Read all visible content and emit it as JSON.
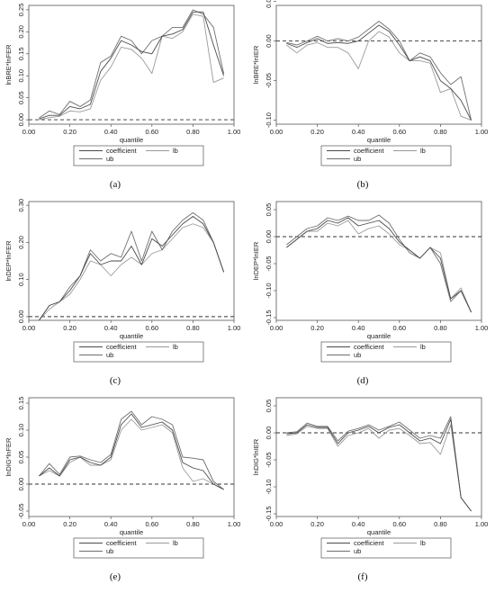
{
  "chart_data": [
    {
      "type": "line",
      "caption": "(a)",
      "xlabel": "quantile",
      "ylabel": "lnBRE*lnFER",
      "xlim": [
        0,
        1
      ],
      "ylim": [
        -0.01,
        0.26
      ],
      "xticks": [
        "0.00",
        "0.20",
        "0.40",
        "0.60",
        "0.80",
        "1.00"
      ],
      "yticks": [
        "0.00",
        "0.05",
        "0.10",
        "0.15",
        "0.20",
        "0.25"
      ],
      "reference_line": 0,
      "legend": [
        "coefficient",
        "lb",
        "ub"
      ],
      "x": [
        0.05,
        0.1,
        0.15,
        0.2,
        0.25,
        0.3,
        0.35,
        0.4,
        0.45,
        0.5,
        0.55,
        0.6,
        0.65,
        0.7,
        0.75,
        0.8,
        0.85,
        0.9,
        0.95
      ],
      "series": [
        {
          "name": "coefficient",
          "values": [
            0.002,
            0.01,
            0.01,
            0.03,
            0.025,
            0.035,
            0.11,
            0.14,
            0.18,
            0.17,
            0.155,
            0.15,
            0.19,
            0.195,
            0.205,
            0.245,
            0.245,
            0.17,
            0.1
          ]
        },
        {
          "name": "lb",
          "values": [
            0.0,
            0.005,
            0.008,
            0.02,
            0.018,
            0.025,
            0.09,
            0.12,
            0.165,
            0.16,
            0.14,
            0.105,
            0.19,
            0.185,
            0.2,
            0.24,
            0.235,
            0.085,
            0.095
          ]
        },
        {
          "name": "ub",
          "values": [
            0.004,
            0.02,
            0.012,
            0.042,
            0.03,
            0.045,
            0.13,
            0.145,
            0.19,
            0.18,
            0.15,
            0.18,
            0.19,
            0.21,
            0.21,
            0.25,
            0.24,
            0.21,
            0.105
          ]
        }
      ]
    },
    {
      "type": "line",
      "caption": "(b)",
      "xlabel": "quantile",
      "ylabel": "lnBRE*lnIER",
      "xlim": [
        0,
        1
      ],
      "ylim": [
        -0.105,
        0.045
      ],
      "xticks": [
        "0.00",
        "0.20",
        "0.40",
        "0.60",
        "0.80",
        "1.00"
      ],
      "yticks": [
        "-0.10",
        "-0.05",
        "0.00",
        "0.05"
      ],
      "reference_line": 0,
      "legend": [
        "coefficient",
        "lb",
        "ub"
      ],
      "x": [
        0.05,
        0.1,
        0.15,
        0.2,
        0.25,
        0.3,
        0.35,
        0.4,
        0.45,
        0.5,
        0.55,
        0.6,
        0.65,
        0.7,
        0.75,
        0.8,
        0.85,
        0.9,
        0.95
      ],
      "series": [
        {
          "name": "coefficient",
          "values": [
            -0.003,
            -0.008,
            -0.002,
            0.003,
            -0.003,
            -0.002,
            -0.003,
            0.0,
            0.01,
            0.02,
            0.012,
            -0.005,
            -0.025,
            -0.02,
            -0.025,
            -0.05,
            -0.06,
            -0.075,
            -0.1
          ]
        },
        {
          "name": "lb",
          "values": [
            -0.005,
            -0.015,
            -0.005,
            -0.002,
            -0.008,
            -0.008,
            -0.015,
            -0.035,
            0.0,
            0.012,
            0.005,
            -0.015,
            -0.025,
            -0.025,
            -0.028,
            -0.065,
            -0.06,
            -0.095,
            -0.1
          ]
        },
        {
          "name": "ub",
          "values": [
            -0.002,
            -0.005,
            0.0,
            0.006,
            0.0,
            0.003,
            0.0,
            0.005,
            0.015,
            0.025,
            0.015,
            0.0,
            -0.025,
            -0.015,
            -0.02,
            -0.04,
            -0.055,
            -0.045,
            -0.1
          ]
        }
      ]
    },
    {
      "type": "line",
      "caption": "(c)",
      "xlabel": "quantile",
      "ylabel": "lnDEP*lnFER",
      "xlim": [
        0,
        1
      ],
      "ylim": [
        -0.01,
        0.31
      ],
      "xticks": [
        "0.00",
        "0.20",
        "0.40",
        "0.60",
        "0.80",
        "1.00"
      ],
      "yticks": [
        "0.00",
        "0.10",
        "0.20",
        "0.30"
      ],
      "reference_line": 0,
      "legend": [
        "coefficient",
        "lb",
        "ub"
      ],
      "x": [
        0.05,
        0.1,
        0.15,
        0.2,
        0.25,
        0.3,
        0.35,
        0.4,
        0.45,
        0.5,
        0.55,
        0.6,
        0.65,
        0.7,
        0.75,
        0.8,
        0.85,
        0.9,
        0.95
      ],
      "series": [
        {
          "name": "coefficient",
          "values": [
            -0.01,
            0.03,
            0.04,
            0.07,
            0.11,
            0.17,
            0.14,
            0.15,
            0.15,
            0.19,
            0.14,
            0.21,
            0.19,
            0.22,
            0.25,
            0.27,
            0.25,
            0.2,
            0.12
          ]
        },
        {
          "name": "lb",
          "values": [
            -0.01,
            0.02,
            0.04,
            0.06,
            0.1,
            0.15,
            0.14,
            0.11,
            0.14,
            0.16,
            0.14,
            0.17,
            0.18,
            0.21,
            0.24,
            0.25,
            0.24,
            0.2,
            0.12
          ]
        },
        {
          "name": "ub",
          "values": [
            -0.01,
            0.03,
            0.04,
            0.08,
            0.11,
            0.18,
            0.15,
            0.17,
            0.16,
            0.23,
            0.15,
            0.23,
            0.18,
            0.23,
            0.26,
            0.28,
            0.26,
            0.2,
            0.12
          ]
        }
      ]
    },
    {
      "type": "line",
      "caption": "(d)",
      "xlabel": "quantile",
      "ylabel": "lnDEP*lnIER",
      "xlim": [
        0,
        1
      ],
      "ylim": [
        -0.155,
        0.065
      ],
      "xticks": [
        "0.00",
        "0.20",
        "0.40",
        "0.60",
        "0.80",
        "1.00"
      ],
      "yticks": [
        "-0.15",
        "-0.10",
        "-0.05",
        "0.00",
        "0.05"
      ],
      "reference_line": 0,
      "legend": [
        "coefficient",
        "lb",
        "ub"
      ],
      "x": [
        0.05,
        0.1,
        0.15,
        0.2,
        0.25,
        0.3,
        0.35,
        0.4,
        0.45,
        0.5,
        0.55,
        0.6,
        0.65,
        0.7,
        0.75,
        0.8,
        0.85,
        0.9,
        0.95
      ],
      "series": [
        {
          "name": "coefficient",
          "values": [
            -0.02,
            -0.005,
            0.01,
            0.015,
            0.03,
            0.025,
            0.035,
            0.02,
            0.025,
            0.03,
            0.015,
            -0.01,
            -0.025,
            -0.04,
            -0.02,
            -0.04,
            -0.115,
            -0.1,
            -0.14
          ]
        },
        {
          "name": "lb",
          "values": [
            -0.02,
            -0.005,
            0.01,
            0.01,
            0.025,
            0.02,
            0.03,
            0.005,
            0.015,
            0.02,
            0.005,
            -0.015,
            -0.025,
            -0.04,
            -0.02,
            -0.03,
            -0.115,
            -0.095,
            -0.14
          ]
        },
        {
          "name": "ub",
          "values": [
            -0.015,
            0.0,
            0.015,
            0.02,
            0.035,
            0.03,
            0.038,
            0.03,
            0.03,
            0.04,
            0.025,
            -0.005,
            -0.03,
            -0.04,
            -0.02,
            -0.05,
            -0.12,
            -0.1,
            -0.14
          ]
        }
      ]
    },
    {
      "type": "line",
      "caption": "(e)",
      "xlabel": "quantile",
      "ylabel": "lnDIG*lnFER",
      "xlim": [
        0,
        1
      ],
      "ylim": [
        -0.06,
        0.16
      ],
      "xticks": [
        "0.00",
        "0.20",
        "0.40",
        "0.60",
        "0.80",
        "1.00"
      ],
      "yticks": [
        "-0.05",
        "0.00",
        "0.05",
        "0.10",
        "0.15"
      ],
      "reference_line": 0,
      "legend": [
        "coefficient",
        "lb",
        "ub"
      ],
      "x": [
        0.05,
        0.1,
        0.15,
        0.2,
        0.25,
        0.3,
        0.35,
        0.4,
        0.45,
        0.5,
        0.55,
        0.6,
        0.65,
        0.7,
        0.75,
        0.8,
        0.85,
        0.9,
        0.95
      ],
      "series": [
        {
          "name": "coefficient",
          "values": [
            0.015,
            0.03,
            0.015,
            0.045,
            0.05,
            0.04,
            0.035,
            0.05,
            0.11,
            0.13,
            0.105,
            0.11,
            0.115,
            0.1,
            0.04,
            0.03,
            0.025,
            0.0,
            -0.01
          ]
        },
        {
          "name": "lb",
          "values": [
            0.015,
            0.025,
            0.015,
            0.04,
            0.05,
            0.035,
            0.035,
            0.045,
            0.1,
            0.12,
            0.1,
            0.105,
            0.11,
            0.095,
            0.03,
            0.005,
            0.01,
            0.0,
            -0.01
          ]
        },
        {
          "name": "ub",
          "values": [
            0.015,
            0.038,
            0.018,
            0.05,
            0.052,
            0.045,
            0.04,
            0.055,
            0.12,
            0.135,
            0.11,
            0.125,
            0.12,
            0.11,
            0.05,
            0.048,
            0.045,
            0.005,
            -0.01
          ]
        }
      ]
    },
    {
      "type": "line",
      "caption": "(f)",
      "xlabel": "quantile",
      "ylabel": "lnDIG*lnIER",
      "xlim": [
        0,
        1
      ],
      "ylim": [
        -0.155,
        0.065
      ],
      "xticks": [
        "0.00",
        "0.20",
        "0.40",
        "0.60",
        "0.80",
        "1.00"
      ],
      "yticks": [
        "-0.15",
        "-0.10",
        "-0.05",
        "0.00",
        "0.05"
      ],
      "reference_line": 0,
      "legend": [
        "coefficient",
        "lb",
        "ub"
      ],
      "x": [
        0.05,
        0.1,
        0.15,
        0.2,
        0.25,
        0.3,
        0.35,
        0.4,
        0.45,
        0.5,
        0.55,
        0.6,
        0.65,
        0.7,
        0.75,
        0.8,
        0.85,
        0.9,
        0.95
      ],
      "series": [
        {
          "name": "coefficient",
          "values": [
            -0.002,
            0.0,
            0.015,
            0.01,
            0.01,
            -0.02,
            0.0,
            0.005,
            0.012,
            0.0,
            0.01,
            0.015,
            0.0,
            -0.015,
            -0.01,
            -0.02,
            0.025,
            -0.12,
            -0.145
          ]
        },
        {
          "name": "lb",
          "values": [
            -0.005,
            -0.002,
            0.012,
            0.008,
            0.008,
            -0.025,
            -0.005,
            0.0,
            0.008,
            -0.01,
            0.005,
            0.008,
            -0.005,
            -0.02,
            -0.018,
            -0.04,
            0.015,
            -0.12,
            -0.145
          ]
        },
        {
          "name": "ub",
          "values": [
            0.0,
            0.002,
            0.018,
            0.012,
            0.012,
            -0.015,
            0.003,
            0.008,
            0.015,
            0.005,
            0.012,
            0.02,
            0.005,
            -0.01,
            -0.005,
            -0.01,
            0.03,
            -0.12,
            -0.145
          ]
        }
      ]
    }
  ]
}
